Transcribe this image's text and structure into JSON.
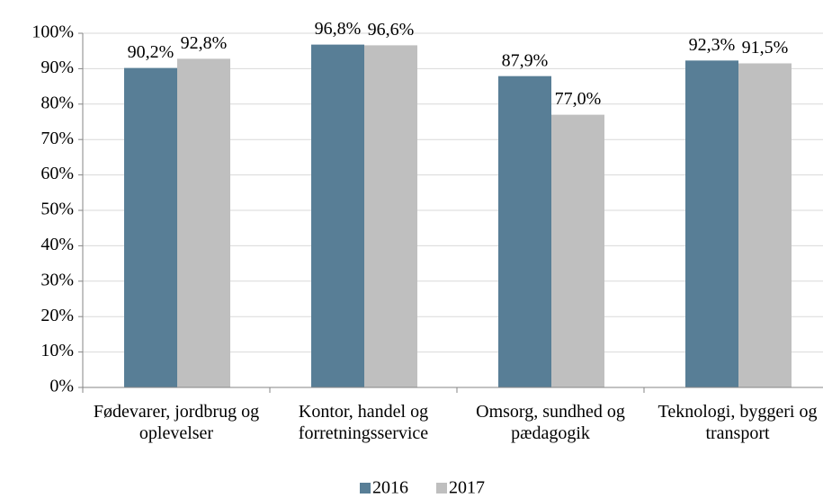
{
  "chart_data": {
    "type": "bar",
    "categories": [
      "Fødevarer, jordbrug og oplevelser",
      "Kontor, handel og forretningsservice",
      "Omsorg, sundhed og pædagogik",
      "Teknologi, byggeri og transport"
    ],
    "series": [
      {
        "name": "2016",
        "color": "#587e96",
        "values": [
          90.2,
          96.8,
          87.9,
          92.3
        ],
        "value_labels": [
          "90,2%",
          "96,8%",
          "87,9%",
          "92,3%"
        ]
      },
      {
        "name": "2017",
        "color": "#bfbfbf",
        "values": [
          92.8,
          96.6,
          77.0,
          91.5
        ],
        "value_labels": [
          "92,8%",
          "96,6%",
          "77,0%",
          "91,5%"
        ]
      }
    ],
    "ylim": [
      0,
      100
    ],
    "yticks": [
      {
        "value": 0,
        "label": "0%"
      },
      {
        "value": 10,
        "label": "10%"
      },
      {
        "value": 20,
        "label": "20%"
      },
      {
        "value": 30,
        "label": "30%"
      },
      {
        "value": 40,
        "label": "40%"
      },
      {
        "value": 50,
        "label": "50%"
      },
      {
        "value": 60,
        "label": "60%"
      },
      {
        "value": 70,
        "label": "70%"
      },
      {
        "value": 80,
        "label": "80%"
      },
      {
        "value": 90,
        "label": "90%"
      },
      {
        "value": 100,
        "label": "100%"
      }
    ],
    "grid": true,
    "legend": "bottom"
  }
}
